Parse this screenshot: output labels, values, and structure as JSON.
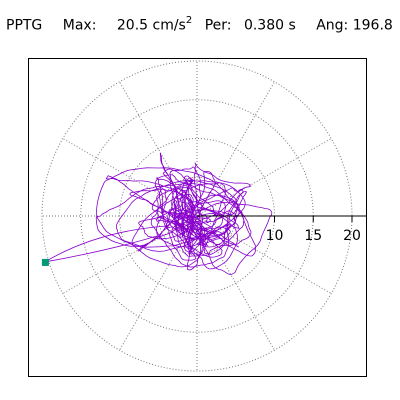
{
  "header": {
    "station": "PPTG",
    "max_label": "Max:",
    "max_value": "20.5",
    "max_unit": "cm/s",
    "max_unit_exp": "2",
    "per_label": "Per:",
    "per_value": "0.380 s",
    "ang_label": "Ang:",
    "ang_value": "196.8"
  },
  "chart_data": {
    "type": "polar-hodogram",
    "radial_range": [
      0,
      22
    ],
    "radial_ticks": [
      "10",
      "15",
      "20"
    ],
    "ring_values": [
      5,
      10,
      15,
      20
    ],
    "spoke_step_deg": 30,
    "grid": true,
    "trace_color": "#8800cc",
    "marker_color": "#009977",
    "peak": {
      "radius": 20.5,
      "angle_deg": 196.8
    }
  }
}
